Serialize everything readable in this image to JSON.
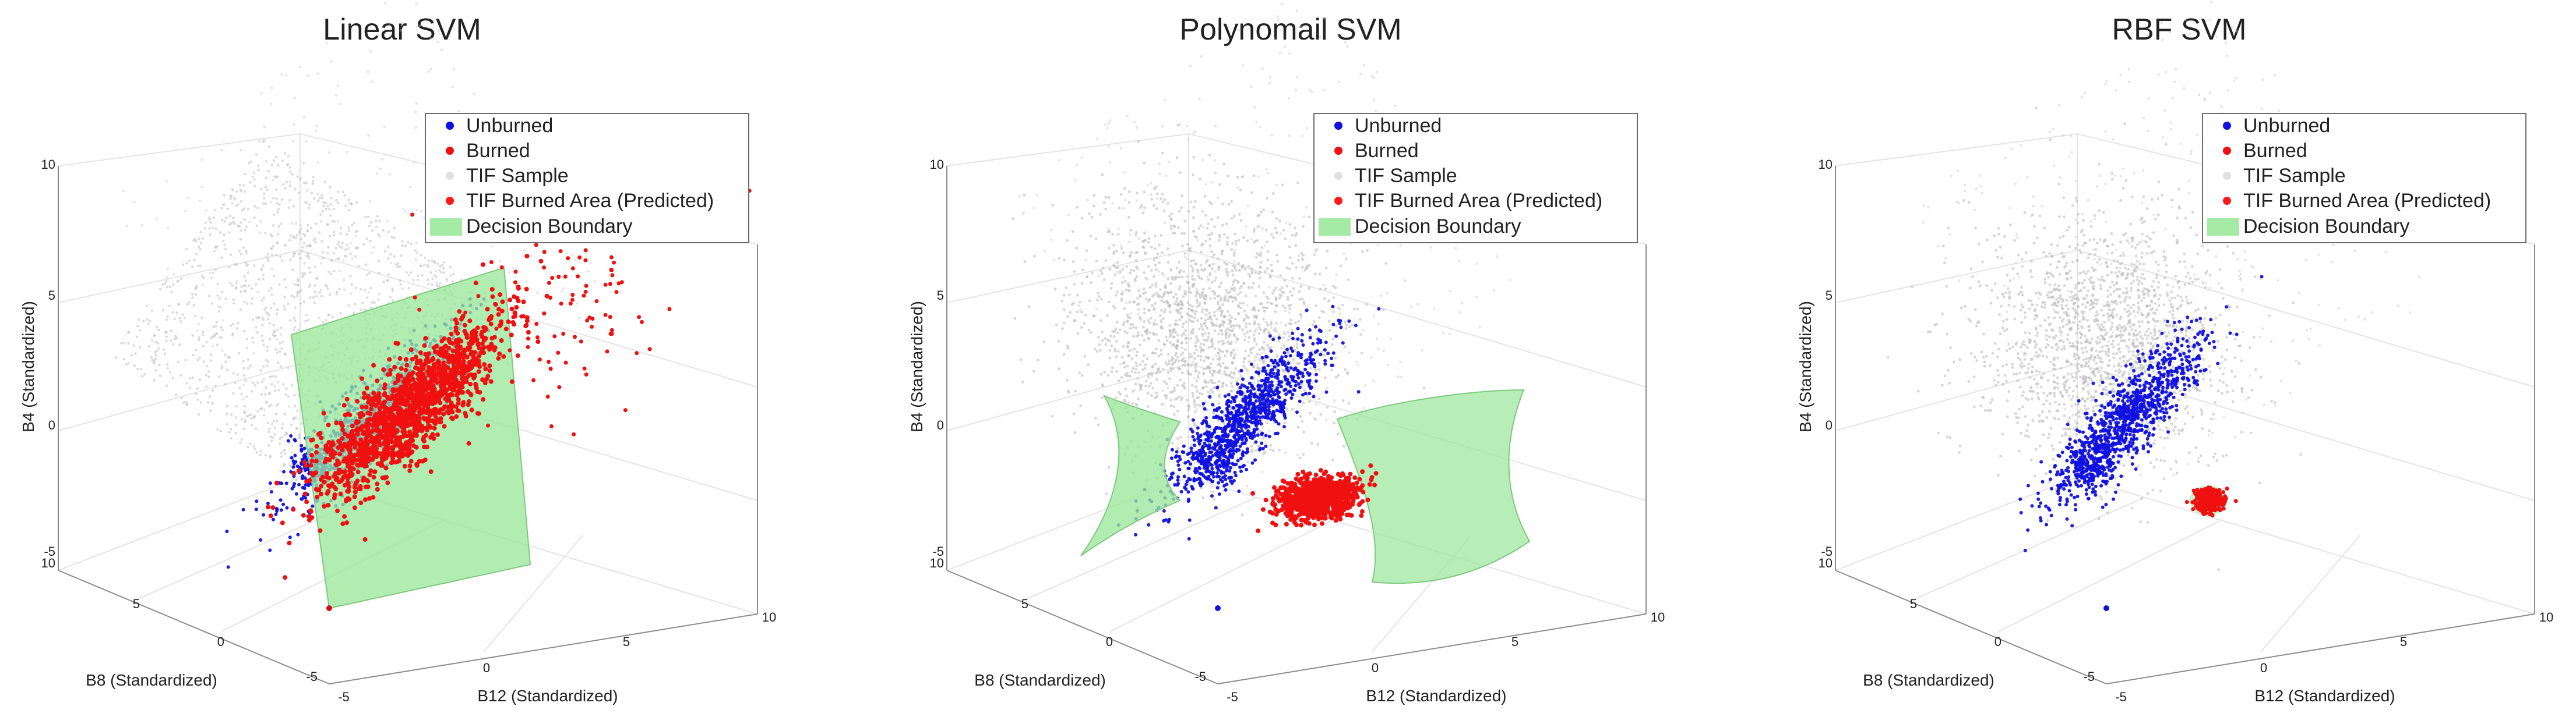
{
  "colors": {
    "unburned": "#1010e0",
    "burned": "#f01010",
    "tif_sample": "#bdbdbd",
    "tif_burned_predicted": "#ff1a1a",
    "decision_boundary": "#9be89b",
    "decision_boundary_edge": "#7fc97f",
    "axis": "#8c8c8c",
    "grid": "#e4e4e4",
    "text": "#222222"
  },
  "chart_data": [
    {
      "type": "scatter3d",
      "title": "Linear SVM",
      "xlabel": "B12 (Standardized)",
      "ylabel": "B8 (Standardized)",
      "zlabel": "B4 (Standardized)",
      "xlim": [
        -5,
        10
      ],
      "ylim": [
        -5,
        10
      ],
      "zlim": [
        -5,
        10
      ],
      "xticks": [
        "-5",
        "0",
        "5",
        "10"
      ],
      "yticks": [
        "-5",
        "0",
        "5",
        "10"
      ],
      "zticks": [
        "-5",
        "0",
        "5",
        "10"
      ],
      "boundary": "plane",
      "burned_extent": "wide",
      "legend": {
        "position": "top-right",
        "entries": [
          "Unburned",
          "Burned",
          "TIF Sample",
          "TIF Burned Area (Predicted)",
          "Decision Boundary"
        ]
      }
    },
    {
      "type": "scatter3d",
      "title": "Polynomail SVM",
      "xlabel": "B12 (Standardized)",
      "ylabel": "B8 (Standardized)",
      "zlabel": "B4 (Standardized)",
      "xlim": [
        -5,
        10
      ],
      "ylim": [
        -5,
        10
      ],
      "zlim": [
        -5,
        10
      ],
      "xticks": [
        "-5",
        "0",
        "5",
        "10"
      ],
      "yticks": [
        "-5",
        "0",
        "5",
        "10"
      ],
      "zticks": [
        "-5",
        "0",
        "5",
        "10"
      ],
      "boundary": "curved",
      "burned_extent": "compact",
      "legend": {
        "position": "top-right",
        "entries": [
          "Unburned",
          "Burned",
          "TIF Sample",
          "TIF Burned Area (Predicted)",
          "Decision Boundary"
        ]
      }
    },
    {
      "type": "scatter3d",
      "title": "RBF SVM",
      "xlabel": "B12 (Standardized)",
      "ylabel": "B8 (Standardized)",
      "zlabel": "B4 (Standardized)",
      "xlim": [
        -5,
        10
      ],
      "ylim": [
        -5,
        10
      ],
      "zlim": [
        -5,
        10
      ],
      "xticks": [
        "-5",
        "0",
        "5",
        "10"
      ],
      "yticks": [
        "-5",
        "0",
        "5",
        "10"
      ],
      "zticks": [
        "-5",
        "0",
        "5",
        "10"
      ],
      "boundary": "small",
      "burned_extent": "tiny",
      "legend": {
        "position": "top-right",
        "entries": [
          "Unburned",
          "Burned",
          "TIF Sample",
          "TIF Burned Area (Predicted)",
          "Decision Boundary"
        ]
      }
    }
  ]
}
